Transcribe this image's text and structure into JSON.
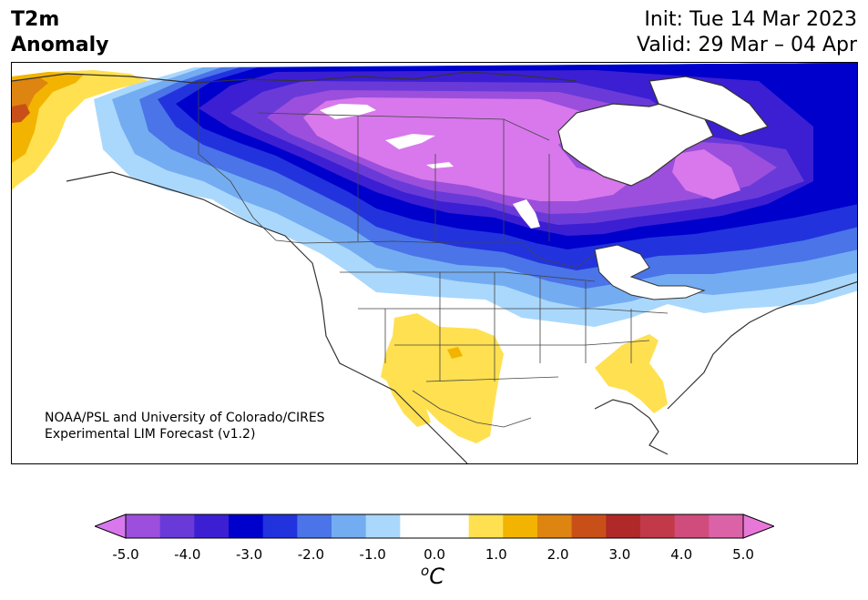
{
  "header": {
    "title_line1": "T2m",
    "title_line2": "Anomaly",
    "init": "Init: Tue 14 Mar 2023",
    "valid": "Valid: 29 Mar – 04 Apr"
  },
  "credit": {
    "line1": "NOAA/PSL and University of Colorado/CIRES",
    "line2": "Experimental LIM Forecast (v1.2)"
  },
  "colorbar": {
    "unit_symbol": "C",
    "unit_prefix": "o",
    "tick_labels": [
      "-5.0",
      "-4.0",
      "-3.0",
      "-2.0",
      "-1.0",
      "0.0",
      "1.0",
      "2.0",
      "3.0",
      "4.0",
      "5.0"
    ],
    "bins": [
      "#9b4fdc",
      "#6a3ad9",
      "#3c1fd3",
      "#0000cc",
      "#2233dd",
      "#4a74e8",
      "#74acf2",
      "#aad8fc",
      "#ffffff",
      "#ffffff",
      "#ffe050",
      "#f2b400",
      "#de8410",
      "#c85018",
      "#b02828",
      "#c23a4a",
      "#d04c7c",
      "#dc62a8"
    ],
    "under_color": "#d878ec",
    "over_color": "#e878d8"
  },
  "map": {
    "palette": {
      "magenta": "#d878ec",
      "violet": "#9b4fdc",
      "indigo": "#6a3ad9",
      "deep_blue": "#3c1fd3",
      "blue": "#0000cc",
      "medium_blue": "#2233dd",
      "cornflower": "#4a74e8",
      "sky": "#74acf2",
      "pale_sky": "#aad8fc",
      "yellow": "#ffe050",
      "gold": "#f2b400",
      "orange": "#de8410",
      "rust": "#c85018"
    }
  }
}
